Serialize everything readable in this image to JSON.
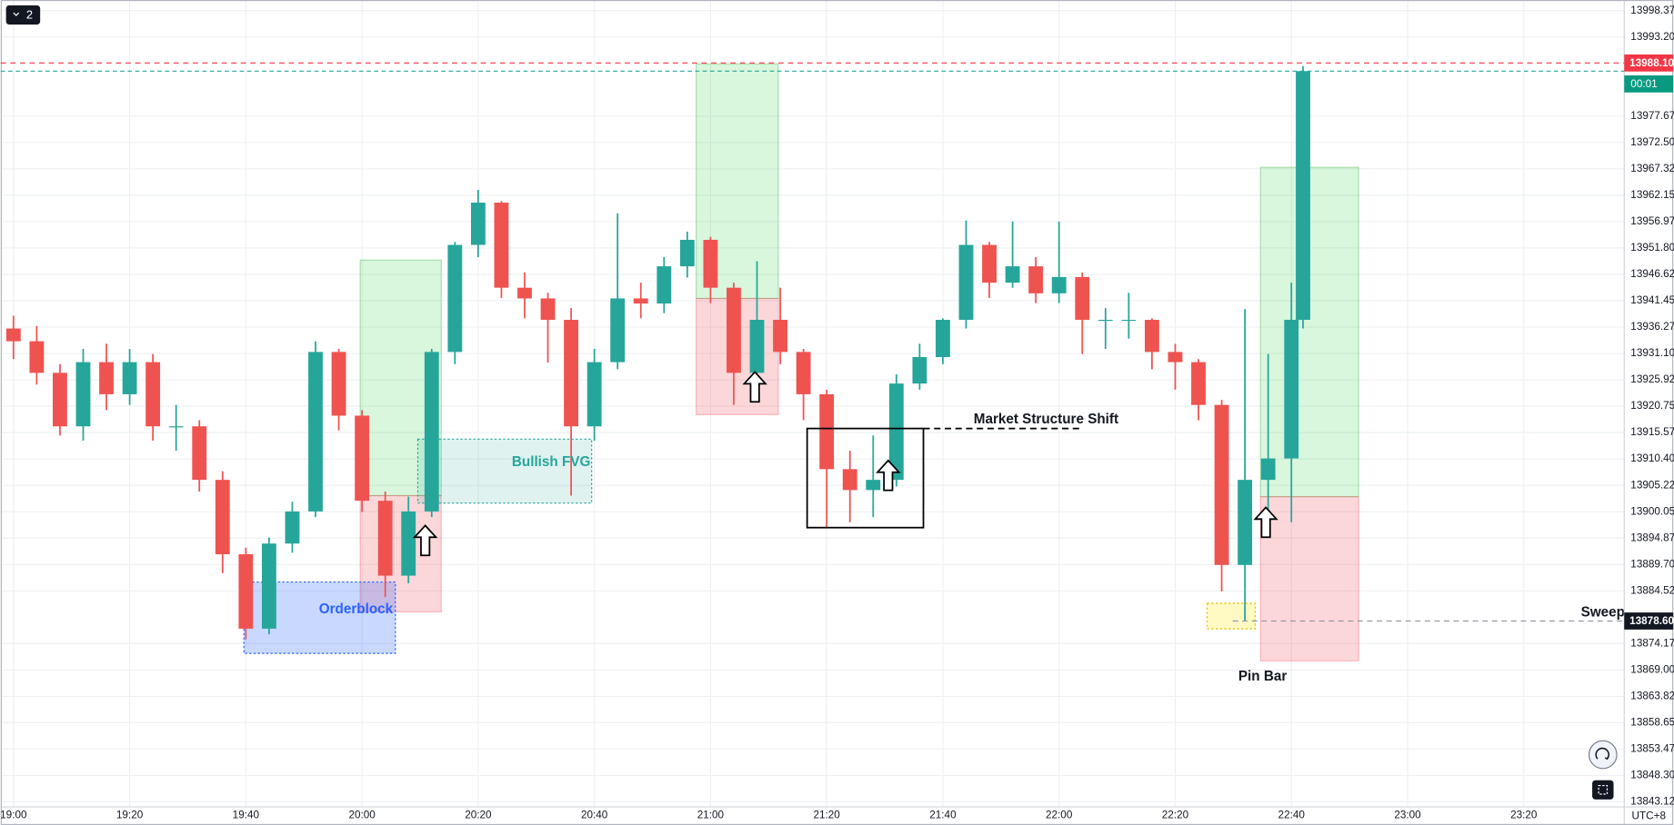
{
  "chart_data": {
    "type": "candlestick",
    "x": [
      1140,
      1144,
      1148,
      1152,
      1156,
      1160,
      1164,
      1168,
      1172,
      1176,
      1180,
      1184,
      1188,
      1192,
      1196,
      1200,
      1204,
      1208,
      1212,
      1216,
      1220,
      1224,
      1228,
      1232,
      1236,
      1240,
      1244,
      1248,
      1252,
      1256,
      1260,
      1264,
      1268,
      1272,
      1276,
      1280,
      1284,
      1288,
      1292,
      1296,
      1300,
      1304,
      1308,
      1312,
      1316,
      1320,
      1324,
      1328,
      1332,
      1336,
      1340,
      1344,
      1348,
      1352,
      1356,
      1360,
      1362
    ],
    "open": [
      13936.0,
      13933.5,
      13927.3,
      13916.8,
      13929.4,
      13923.1,
      13929.4,
      13916.8,
      13916.8,
      13906.3,
      13891.7,
      13877.1,
      13893.8,
      13900.1,
      13931.4,
      13918.9,
      13902.2,
      13887.5,
      13900.1,
      13931.4,
      13952.4,
      13960.7,
      13944.0,
      13941.9,
      13937.7,
      13916.8,
      13929.4,
      13941.9,
      13940.9,
      13948.2,
      13953.4,
      13944.0,
      13927.3,
      13937.7,
      13931.4,
      13923.1,
      13908.4,
      13904.3,
      13906.3,
      13925.2,
      13930.4,
      13937.7,
      13952.4,
      13945.0,
      13948.2,
      13942.9,
      13946.1,
      13937.7,
      13937.7,
      13937.7,
      13931.4,
      13929.4,
      13921.0,
      13889.6,
      13906.3,
      13910.5,
      13937.7
    ],
    "high": [
      13938.5,
      13936.5,
      13929.0,
      13932.0,
      13933.0,
      13932.0,
      13931.0,
      13921.0,
      13918.0,
      13908.0,
      13893.0,
      13895.0,
      13902.0,
      13933.5,
      13932.0,
      13920.0,
      13904.0,
      13903.0,
      13932.0,
      13953.0,
      13963.2,
      13961.0,
      13947.0,
      13943.0,
      13940.0,
      13932.0,
      13958.6,
      13945.0,
      13950.0,
      13955.0,
      13954.0,
      13945.0,
      13949.2,
      13944.0,
      13932.0,
      13924.0,
      13912.0,
      13915.0,
      13927.0,
      13933.0,
      13938.0,
      13957.2,
      13953.0,
      13957.0,
      13950.0,
      13957.0,
      13947.0,
      13940.0,
      13943.0,
      13938.0,
      13933.0,
      13930.0,
      13922.0,
      13939.8,
      13931.0,
      13945.0,
      13987.5
    ],
    "low": [
      13930.0,
      13925.0,
      13915.0,
      13914.0,
      13920.0,
      13921.0,
      13914.0,
      13912.0,
      13904.0,
      13888.0,
      13875.0,
      13876.0,
      13892.0,
      13899.0,
      13916.0,
      13900.0,
      13883.3,
      13886.0,
      13899.0,
      13929.0,
      13950.0,
      13942.0,
      13938.0,
      13929.3,
      13903.2,
      13914.0,
      13928.0,
      13938.0,
      13939.0,
      13946.0,
      13941.0,
      13921.0,
      13925.0,
      13929.0,
      13918.0,
      13896.9,
      13898.0,
      13899.0,
      13905.0,
      13924.0,
      13929.0,
      13936.0,
      13942.0,
      13944.0,
      13941.0,
      13941.0,
      13931.0,
      13932.0,
      13934.0,
      13928.0,
      13924.0,
      13918.0,
      13884.4,
      13878.7,
      13899.0,
      13898.0,
      13936.0
    ],
    "close": [
      13933.5,
      13927.3,
      13916.8,
      13929.4,
      13923.1,
      13929.4,
      13916.8,
      13916.8,
      13906.3,
      13891.7,
      13877.1,
      13893.8,
      13900.1,
      13931.4,
      13918.9,
      13902.2,
      13887.5,
      13900.1,
      13931.4,
      13952.4,
      13960.7,
      13944.0,
      13941.9,
      13937.7,
      13916.8,
      13929.4,
      13941.9,
      13940.9,
      13948.2,
      13953.4,
      13944.0,
      13927.3,
      13937.7,
      13931.4,
      13923.1,
      13908.4,
      13904.3,
      13906.3,
      13925.2,
      13930.4,
      13937.7,
      13952.4,
      13945.0,
      13948.2,
      13942.9,
      13946.1,
      13937.7,
      13937.7,
      13937.7,
      13931.4,
      13929.4,
      13921.0,
      13889.6,
      13906.3,
      13910.5,
      13937.7,
      13986.5
    ],
    "up_color": "#26a69a",
    "down_color": "#ef5350",
    "xlim": [
      1137.8,
      1417.3
    ],
    "xticks": [
      {
        "value": 1140,
        "label": "19:00"
      },
      {
        "value": 1160,
        "label": "19:20"
      },
      {
        "value": 1180,
        "label": "19:40"
      },
      {
        "value": 1200,
        "label": "20:00"
      },
      {
        "value": 1220,
        "label": "20:20"
      },
      {
        "value": 1240,
        "label": "20:40"
      },
      {
        "value": 1260,
        "label": "21:00"
      },
      {
        "value": 1280,
        "label": "21:20"
      },
      {
        "value": 1300,
        "label": "21:40"
      },
      {
        "value": 1320,
        "label": "22:00"
      },
      {
        "value": 1340,
        "label": "22:20"
      },
      {
        "value": 1360,
        "label": "22:40"
      },
      {
        "value": 1380,
        "label": "23:00"
      },
      {
        "value": 1400,
        "label": "23:20"
      }
    ],
    "ylim": [
      13842.13,
      14000.46
    ],
    "yticks": [
      13998.37,
      {
        "value": 13993.2,
        "label": "13993.20"
      },
      13977.67,
      {
        "value": 13972.5,
        "label": "13972.50"
      },
      13967.32,
      13962.15,
      13956.97,
      {
        "value": 13951.8,
        "label": "13951.80"
      },
      13946.62,
      13941.45,
      13936.27,
      {
        "value": 13931.1,
        "label": "13931.10"
      },
      13925.92,
      13920.75,
      13915.57,
      {
        "value": 13910.4,
        "label": "13910.40"
      },
      13905.22,
      13900.05,
      13894.87,
      {
        "value": 13889.7,
        "label": "13889.70"
      },
      13884.52,
      13874.17,
      {
        "value": 13869.0,
        "label": "13869.00"
      },
      13863.82,
      13858.65,
      13853.47,
      {
        "value": 13848.3,
        "label": "13848.30"
      },
      13843.12
    ],
    "grid": true,
    "price_lines": [
      {
        "value": 13988.1,
        "label": "13988.10",
        "color": "#f23645"
      },
      {
        "value": 13878.6,
        "label": "13878.60",
        "color": "#131722"
      }
    ],
    "countdown": "00:01",
    "timezone": "UTC+8",
    "annotations": {
      "mss": "Market Structure Shift",
      "fvg": "Bullish FVG",
      "orderblock": "Orderblock",
      "pin_bar": "Pin Bar",
      "sweep": "Sweep"
    }
  },
  "toolbar": {
    "badge": "2"
  }
}
